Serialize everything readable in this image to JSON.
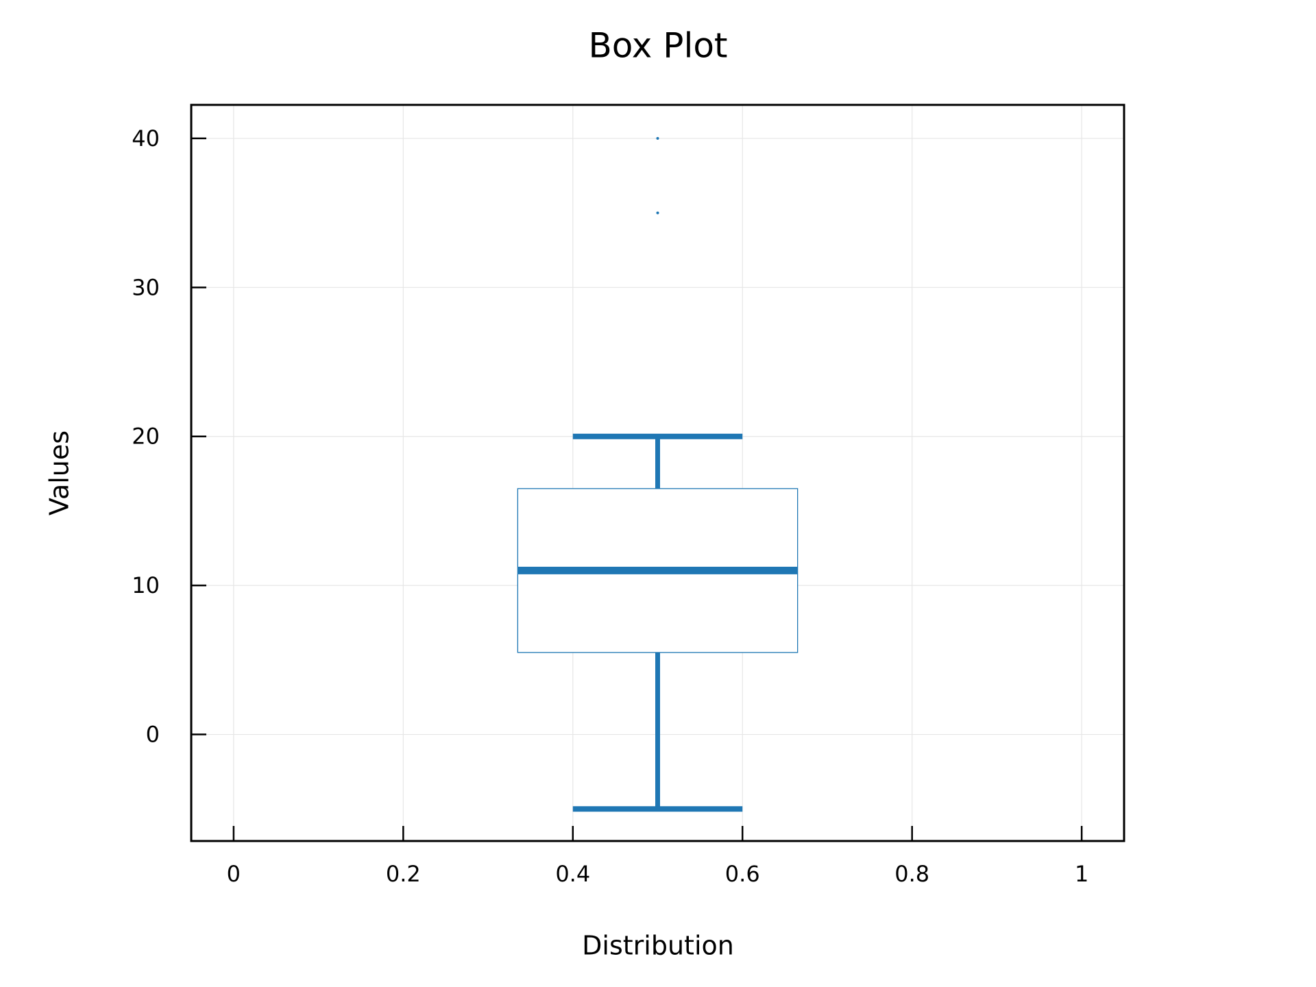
{
  "chart_data": {
    "type": "box",
    "title": "Box Plot",
    "x_label": "Distribution",
    "y_label": "Values",
    "series": [
      {
        "x": 0.5,
        "whislo": -5,
        "q1": 5.5,
        "med": 11,
        "q3": 16.5,
        "whishi": 20,
        "fliers": [
          35,
          40
        ],
        "color": "#1f77b4"
      }
    ],
    "xlim": [
      -0.05,
      1.05
    ],
    "xticks": [
      0,
      0.2,
      0.4,
      0.6,
      0.8,
      1
    ],
    "ylim": [
      -7.15,
      42.25
    ],
    "yticks": [
      0,
      10,
      20,
      30,
      40
    ],
    "grid": true
  }
}
